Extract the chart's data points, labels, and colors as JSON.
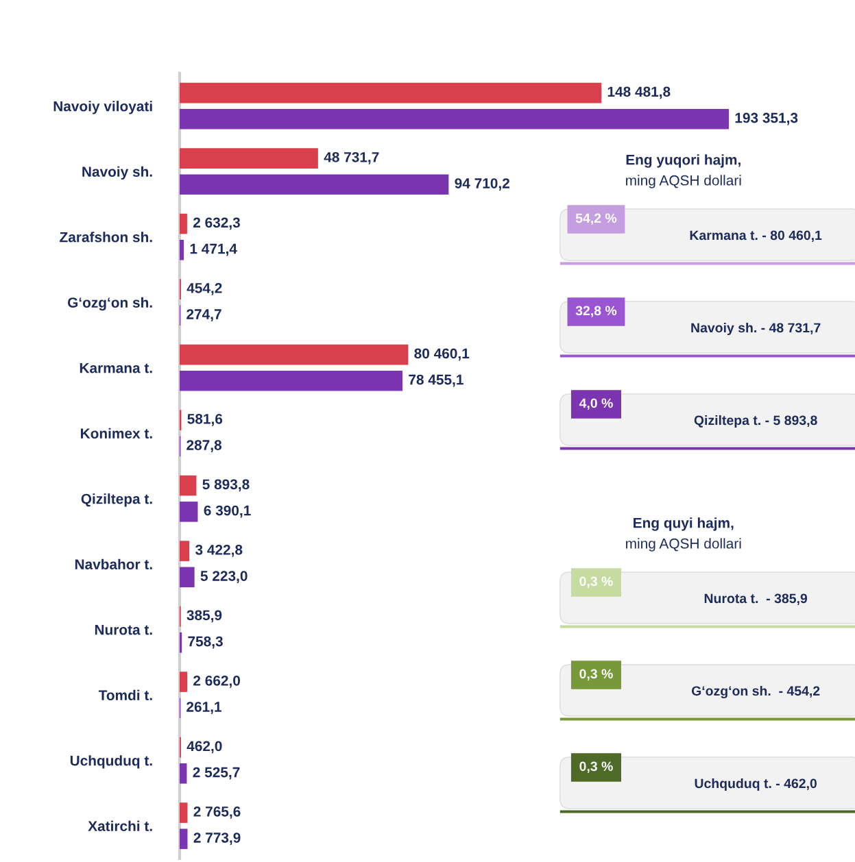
{
  "chart_data": [
    {
      "type": "bar",
      "orientation": "horizontal",
      "tick_labels": "y",
      "categories": [
        "Navoiy viloyati",
        "Navoiy sh.",
        "Zarafshon sh.",
        "G‘ozg‘on sh.",
        "Karmana t.",
        "Konimex t.",
        "Qiziltepa t.",
        "Navbahor t.",
        "Nurota t.",
        "Tomdi t.",
        "Uchquduq t.",
        "Xatirchi t."
      ],
      "series": [
        {
          "color": "#d9404e",
          "values": [
            148481.8,
            48731.7,
            2632.3,
            454.2,
            80460.1,
            581.6,
            5893.8,
            3422.8,
            385.9,
            2662.0,
            462.0,
            2765.6
          ],
          "value_labels": [
            "148 481,8",
            "48 731,7",
            "2 632,3",
            "454,2",
            "80 460,1",
            "581,6",
            "5 893,8",
            "3 422,8",
            "385,9",
            "2 662,0",
            "462,0",
            "2 765,6"
          ]
        },
        {
          "color": "#7b35b0",
          "values": [
            193351.3,
            94710.2,
            1471.4,
            274.7,
            78455.1,
            287.8,
            6390.1,
            5223.0,
            758.3,
            261.1,
            2525.7,
            2773.9
          ],
          "value_labels": [
            "193 351,3",
            "94 710,2",
            "1 471,4",
            "274,7",
            "78 455,1",
            "287,8",
            "6 390,1",
            "5 223,0",
            "758,3",
            "261,1",
            "2 525,7",
            "2 773,9"
          ]
        }
      ]
    },
    {
      "type": "other",
      "title": "Eng yuqori hajm,",
      "subtitle": "ming AQSH dollari",
      "annotations": [
        "54,2 %",
        "Karmana t. - 80 460,1",
        "32,8 %",
        "Navoiy sh. - 48 731,7",
        "4,0 %",
        "Qiziltepa t. - 5 893,8"
      ],
      "colors": [
        "#c49ee0",
        "#9a55d0",
        "#7b35b0"
      ]
    },
    {
      "type": "other",
      "title": "Eng quyi hajm,",
      "subtitle": "ming AQSH dollari",
      "annotations": [
        "0,3 %",
        "Nurota t.  - 385,9",
        "0,3 %",
        "G‘ozg‘on sh.  - 454,2",
        "0,3 %",
        "Uchquduq t. - 462,0"
      ],
      "colors": [
        "#c5dba0",
        "#77993a",
        "#4e6a26"
      ]
    }
  ]
}
